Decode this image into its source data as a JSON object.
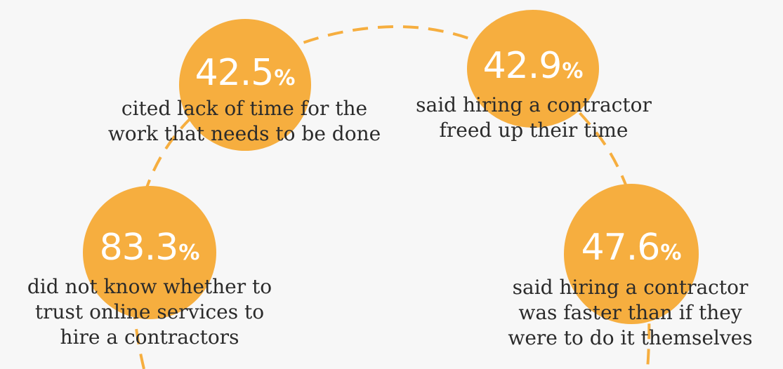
{
  "colors": {
    "background": "#f7f7f7",
    "accent": "#f6ae3f",
    "text": "#2b2b2b"
  },
  "stats": [
    {
      "value": "42.5",
      "unit": "%",
      "caption": [
        "cited lack of time for the",
        "work that needs to be done"
      ]
    },
    {
      "value": "42.9",
      "unit": "%",
      "caption": [
        "said hiring a contractor",
        "freed up their time"
      ]
    },
    {
      "value": "83.3",
      "unit": "%",
      "caption": [
        "did not know whether to",
        "trust online services to",
        "hire a contractors"
      ]
    },
    {
      "value": "47.6",
      "unit": "%",
      "caption": [
        "said hiring a contractor",
        "was faster than if they",
        "were to do it themselves"
      ]
    }
  ]
}
